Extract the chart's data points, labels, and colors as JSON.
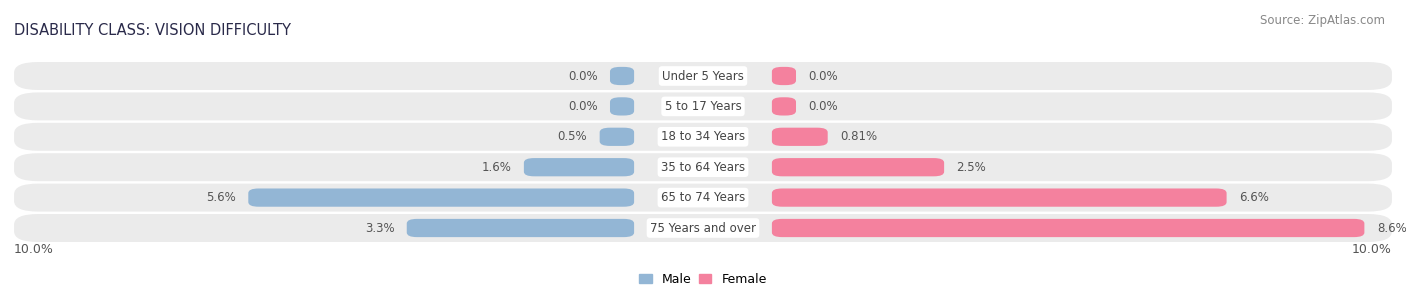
{
  "title": "DISABILITY CLASS: VISION DIFFICULTY",
  "source": "Source: ZipAtlas.com",
  "categories": [
    "Under 5 Years",
    "5 to 17 Years",
    "18 to 34 Years",
    "35 to 64 Years",
    "65 to 74 Years",
    "75 Years and over"
  ],
  "male_values": [
    0.0,
    0.0,
    0.5,
    1.6,
    5.6,
    3.3
  ],
  "female_values": [
    0.0,
    0.0,
    0.81,
    2.5,
    6.6,
    8.6
  ],
  "male_color": "#93b6d5",
  "female_color": "#f4819e",
  "row_bg_color": "#ebebeb",
  "max_val": 10.0,
  "title_fontsize": 10.5,
  "source_fontsize": 8.5,
  "label_fontsize": 8.5,
  "category_fontsize": 8.5,
  "tick_fontsize": 9,
  "background_color": "#ffffff",
  "label_color": "#555555",
  "category_color": "#444444"
}
